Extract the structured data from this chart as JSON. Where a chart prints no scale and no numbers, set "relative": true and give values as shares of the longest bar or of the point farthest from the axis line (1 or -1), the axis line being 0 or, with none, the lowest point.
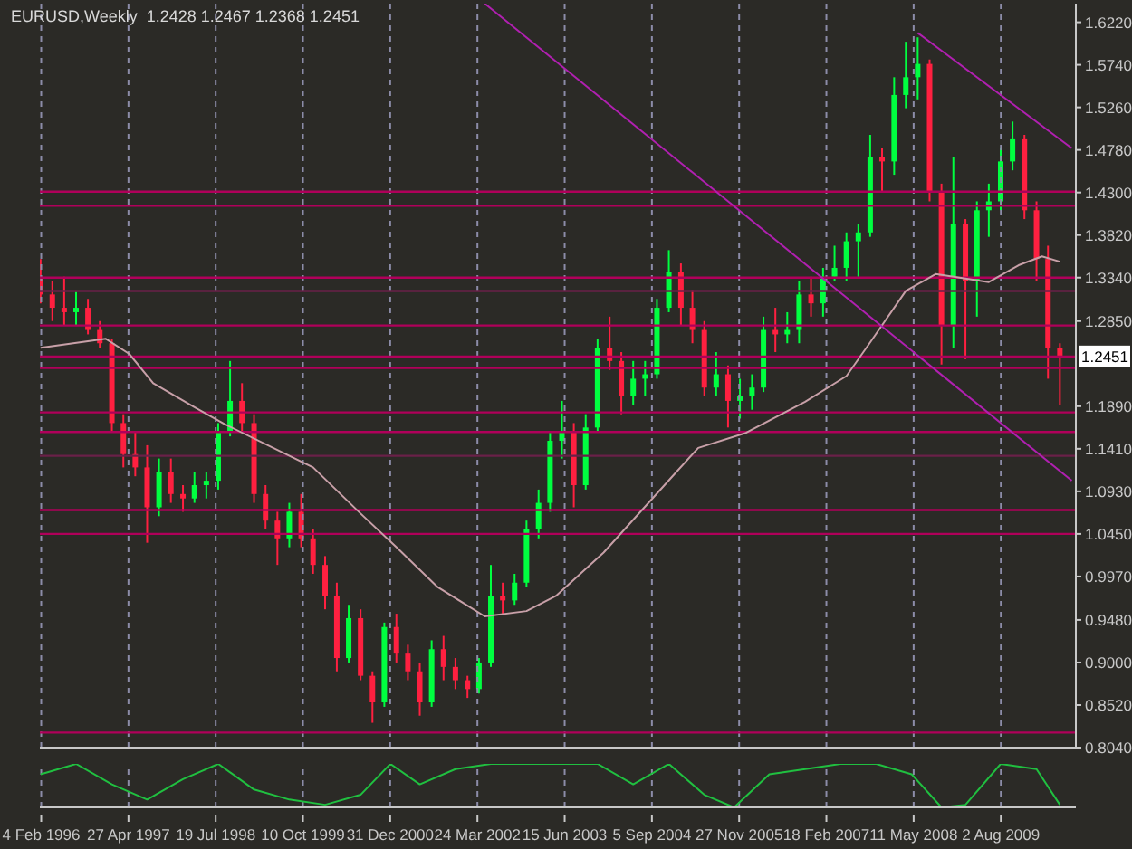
{
  "chart_data": [
    {
      "type": "candlestick",
      "title": "EURUSD,Weekly  1.2428 1.2467 1.2368 1.2451",
      "xlim": [
        "1996-01-28",
        "2010-08-22"
      ],
      "xticks": [
        {
          "value": "1996-02-04",
          "label": null
        },
        {
          "value": "1997-04-27",
          "label": null
        },
        {
          "value": "1998-07-19",
          "label": null
        },
        {
          "value": "1999-10-10",
          "label": null
        },
        {
          "value": "2000-12-31",
          "label": null
        },
        {
          "value": "2002-03-24",
          "label": null
        },
        {
          "value": "2003-06-15",
          "label": null
        },
        {
          "value": "2004-09-05",
          "label": null
        },
        {
          "value": "2005-11-27",
          "label": null
        },
        {
          "value": "2007-02-18",
          "label": null
        },
        {
          "value": "2008-05-11",
          "label": null
        },
        {
          "value": "2009-08-02",
          "label": null
        }
      ],
      "ylim": [
        0.804,
        1.643
      ],
      "yticks": [
        {
          "value": 0.804,
          "label": "0.8040"
        },
        {
          "value": 0.852,
          "label": "0.8520"
        },
        {
          "value": 0.9,
          "label": "0.9000"
        },
        {
          "value": 0.948,
          "label": "0.9480"
        },
        {
          "value": 0.997,
          "label": "0.9970"
        },
        {
          "value": 1.045,
          "label": "1.0450"
        },
        {
          "value": 1.093,
          "label": "1.0930"
        },
        {
          "value": 1.141,
          "label": "1.1410"
        },
        {
          "value": 1.189,
          "label": "1.1890"
        },
        {
          "value": 1.285,
          "label": "1.2850"
        },
        {
          "value": 1.334,
          "label": "1.3340"
        },
        {
          "value": 1.382,
          "label": "1.3820"
        },
        {
          "value": 1.43,
          "label": "1.4300"
        },
        {
          "value": 1.478,
          "label": "1.4780"
        },
        {
          "value": 1.526,
          "label": "1.5260"
        },
        {
          "value": 1.574,
          "label": "1.5740"
        },
        {
          "value": 1.622,
          "label": "1.6220"
        }
      ],
      "tick_labels": "y",
      "grid": "x",
      "legend": false,
      "series": [
        {
          "type": "candlestick",
          "x": [
            "1996-02",
            "1996-04",
            "1996-06",
            "1996-08",
            "1996-10",
            "1996-12",
            "1997-02",
            "1997-04",
            "1997-06",
            "1997-08",
            "1997-10",
            "1997-12",
            "1998-02",
            "1998-04",
            "1998-06",
            "1998-08",
            "1998-10",
            "1998-12",
            "1999-02",
            "1999-04",
            "1999-06",
            "1999-08",
            "1999-10",
            "1999-12",
            "2000-02",
            "2000-04",
            "2000-06",
            "2000-08",
            "2000-10",
            "2000-12",
            "2001-02",
            "2001-04",
            "2001-06",
            "2001-08",
            "2001-10",
            "2001-12",
            "2002-02",
            "2002-04",
            "2002-06",
            "2002-08",
            "2002-10",
            "2002-12",
            "2003-02",
            "2003-04",
            "2003-06",
            "2003-08",
            "2003-10",
            "2003-12",
            "2004-02",
            "2004-04",
            "2004-06",
            "2004-08",
            "2004-10",
            "2004-12",
            "2005-02",
            "2005-04",
            "2005-06",
            "2005-08",
            "2005-10",
            "2005-12",
            "2006-02",
            "2006-04",
            "2006-06",
            "2006-08",
            "2006-10",
            "2006-12",
            "2007-02",
            "2007-04",
            "2007-06",
            "2007-08",
            "2007-10",
            "2007-12",
            "2008-02",
            "2008-04",
            "2008-06",
            "2008-08",
            "2008-10",
            "2008-12",
            "2009-02",
            "2009-04",
            "2009-06",
            "2009-08",
            "2009-10",
            "2009-12",
            "2010-02",
            "2010-04",
            "2010-06"
          ],
          "ohlc": [
            [
              1.335,
              1.355,
              1.305,
              1.315
            ],
            [
              1.315,
              1.33,
              1.285,
              1.3
            ],
            [
              1.3,
              1.335,
              1.28,
              1.295
            ],
            [
              1.295,
              1.318,
              1.28,
              1.3
            ],
            [
              1.3,
              1.31,
              1.27,
              1.275
            ],
            [
              1.275,
              1.285,
              1.255,
              1.26
            ],
            [
              1.26,
              1.265,
              1.16,
              1.17
            ],
            [
              1.17,
              1.18,
              1.12,
              1.135
            ],
            [
              1.135,
              1.16,
              1.11,
              1.12
            ],
            [
              1.12,
              1.145,
              1.035,
              1.075
            ],
            [
              1.075,
              1.13,
              1.065,
              1.115
            ],
            [
              1.115,
              1.13,
              1.08,
              1.09
            ],
            [
              1.09,
              1.1,
              1.07,
              1.085
            ],
            [
              1.085,
              1.115,
              1.08,
              1.1
            ],
            [
              1.1,
              1.115,
              1.085,
              1.105
            ],
            [
              1.105,
              1.17,
              1.095,
              1.16
            ],
            [
              1.16,
              1.24,
              1.155,
              1.195
            ],
            [
              1.195,
              1.215,
              1.16,
              1.17
            ],
            [
              1.17,
              1.18,
              1.08,
              1.09
            ],
            [
              1.09,
              1.1,
              1.05,
              1.06
            ],
            [
              1.06,
              1.07,
              1.01,
              1.04
            ],
            [
              1.04,
              1.08,
              1.03,
              1.07
            ],
            [
              1.07,
              1.09,
              1.03,
              1.04
            ],
            [
              1.04,
              1.05,
              1.0,
              1.01
            ],
            [
              1.01,
              1.02,
              0.96,
              0.975
            ],
            [
              0.975,
              0.99,
              0.89,
              0.905
            ],
            [
              0.905,
              0.965,
              0.9,
              0.95
            ],
            [
              0.95,
              0.96,
              0.88,
              0.885
            ],
            [
              0.885,
              0.89,
              0.832,
              0.855
            ],
            [
              0.855,
              0.945,
              0.85,
              0.94
            ],
            [
              0.94,
              0.955,
              0.9,
              0.91
            ],
            [
              0.91,
              0.92,
              0.88,
              0.89
            ],
            [
              0.89,
              0.9,
              0.84,
              0.855
            ],
            [
              0.855,
              0.925,
              0.85,
              0.915
            ],
            [
              0.915,
              0.93,
              0.88,
              0.895
            ],
            [
              0.895,
              0.905,
              0.87,
              0.88
            ],
            [
              0.88,
              0.885,
              0.86,
              0.87
            ],
            [
              0.87,
              0.905,
              0.865,
              0.9
            ],
            [
              0.9,
              1.01,
              0.895,
              0.975
            ],
            [
              0.975,
              0.99,
              0.955,
              0.97
            ],
            [
              0.97,
              1.0,
              0.965,
              0.99
            ],
            [
              0.99,
              1.06,
              0.985,
              1.05
            ],
            [
              1.05,
              1.095,
              1.04,
              1.08
            ],
            [
              1.08,
              1.16,
              1.07,
              1.15
            ],
            [
              1.15,
              1.195,
              1.13,
              1.16
            ],
            [
              1.16,
              1.17,
              1.075,
              1.1
            ],
            [
              1.1,
              1.18,
              1.095,
              1.165
            ],
            [
              1.165,
              1.265,
              1.16,
              1.255
            ],
            [
              1.255,
              1.29,
              1.23,
              1.24
            ],
            [
              1.24,
              1.25,
              1.18,
              1.2
            ],
            [
              1.2,
              1.24,
              1.19,
              1.22
            ],
            [
              1.22,
              1.24,
              1.2,
              1.225
            ],
            [
              1.225,
              1.31,
              1.22,
              1.3
            ],
            [
              1.3,
              1.365,
              1.295,
              1.34
            ],
            [
              1.34,
              1.35,
              1.28,
              1.3
            ],
            [
              1.3,
              1.32,
              1.26,
              1.275
            ],
            [
              1.275,
              1.285,
              1.2,
              1.21
            ],
            [
              1.21,
              1.25,
              1.2,
              1.225
            ],
            [
              1.225,
              1.235,
              1.165,
              1.195
            ],
            [
              1.195,
              1.22,
              1.175,
              1.2
            ],
            [
              1.2,
              1.225,
              1.185,
              1.21
            ],
            [
              1.21,
              1.29,
              1.205,
              1.275
            ],
            [
              1.275,
              1.3,
              1.25,
              1.27
            ],
            [
              1.27,
              1.295,
              1.26,
              1.275
            ],
            [
              1.275,
              1.33,
              1.26,
              1.315
            ],
            [
              1.315,
              1.335,
              1.29,
              1.305
            ],
            [
              1.305,
              1.345,
              1.29,
              1.335
            ],
            [
              1.335,
              1.37,
              1.33,
              1.345
            ],
            [
              1.345,
              1.385,
              1.33,
              1.375
            ],
            [
              1.375,
              1.395,
              1.335,
              1.385
            ],
            [
              1.385,
              1.495,
              1.38,
              1.47
            ],
            [
              1.47,
              1.48,
              1.43,
              1.465
            ],
            [
              1.465,
              1.56,
              1.45,
              1.54
            ],
            [
              1.54,
              1.6,
              1.525,
              1.56
            ],
            [
              1.56,
              1.605,
              1.535,
              1.575
            ],
            [
              1.575,
              1.58,
              1.42,
              1.43
            ],
            [
              1.43,
              1.44,
              1.236,
              1.28
            ],
            [
              1.28,
              1.47,
              1.255,
              1.395
            ],
            [
              1.395,
              1.4,
              1.242,
              1.33
            ],
            [
              1.33,
              1.42,
              1.29,
              1.41
            ],
            [
              1.41,
              1.44,
              1.38,
              1.42
            ],
            [
              1.42,
              1.48,
              1.41,
              1.465
            ],
            [
              1.465,
              1.51,
              1.455,
              1.49
            ],
            [
              1.49,
              1.495,
              1.4,
              1.41
            ],
            [
              1.41,
              1.42,
              1.33,
              1.355
            ],
            [
              1.355,
              1.37,
              1.22,
              1.255
            ],
            [
              1.255,
              1.26,
              1.19,
              1.245
            ]
          ],
          "colors": [
            "#ff2040",
            "#ff2040",
            "#ff2040",
            "#00ff40",
            "#ff2040",
            "#ff2040",
            "#ff2040",
            "#ff2040",
            "#ff2040",
            "#ff2040",
            "#00ff40",
            "#ff2040",
            "#ff2040",
            "#00ff40",
            "#00ff40",
            "#00ff40",
            "#00ff40",
            "#ff2040",
            "#ff2040",
            "#ff2040",
            "#ff2040",
            "#00ff40",
            "#ff2040",
            "#ff2040",
            "#ff2040",
            "#ff2040",
            "#00ff40",
            "#ff2040",
            "#ff2040",
            "#00ff40",
            "#ff2040",
            "#ff2040",
            "#ff2040",
            "#00ff40",
            "#ff2040",
            "#ff2040",
            "#ff2040",
            "#00ff40",
            "#00ff40",
            "#ff2040",
            "#00ff40",
            "#00ff40",
            "#00ff40",
            "#00ff40",
            "#00ff40",
            "#ff2040",
            "#00ff40",
            "#00ff40",
            "#ff2040",
            "#ff2040",
            "#00ff40",
            "#00ff40",
            "#00ff40",
            "#00ff40",
            "#ff2040",
            "#ff2040",
            "#ff2040",
            "#00ff40",
            "#ff2040",
            "#00ff40",
            "#00ff40",
            "#00ff40",
            "#ff2040",
            "#00ff40",
            "#00ff40",
            "#ff2040",
            "#00ff40",
            "#00ff40",
            "#00ff40",
            "#00ff40",
            "#00ff40",
            "#ff2040",
            "#00ff40",
            "#00ff40",
            "#00ff40",
            "#ff2040",
            "#ff2040",
            "#00ff40",
            "#ff2040",
            "#00ff40",
            "#00ff40",
            "#00ff40",
            "#00ff40",
            "#ff2040",
            "#ff2040",
            "#ff2040",
            "#ff2040"
          ]
        },
        {
          "type": "line",
          "color": "#c8a0a8",
          "x": [
            "1996-02",
            "1997-01",
            "1997-05",
            "1997-09",
            "1998-04",
            "1998-09",
            "1999-12",
            "2000-08",
            "2001-02",
            "2001-09",
            "2002-05",
            "2002-12",
            "2003-05",
            "2004-01",
            "2005-01",
            "2005-05",
            "2006-01",
            "2006-11",
            "2007-06",
            "2007-10",
            "2008-04",
            "2008-09",
            "2009-02",
            "2009-06",
            "2009-11",
            "2010-03",
            "2010-06"
          ],
          "values": [
            1.255,
            1.265,
            1.248,
            1.215,
            1.188,
            1.169,
            1.12,
            1.068,
            1.03,
            0.985,
            0.952,
            0.958,
            0.975,
            1.024,
            1.113,
            1.142,
            1.159,
            1.194,
            1.223,
            1.261,
            1.319,
            1.338,
            1.333,
            1.329,
            1.348,
            1.358,
            1.352
          ]
        },
        {
          "type": "line",
          "color": "#b020b0",
          "x": [
            "2002-05",
            "2010-08"
          ],
          "values": [
            1.643,
            1.105
          ]
        },
        {
          "type": "line",
          "color": "#b020b0",
          "x": [
            "2008-06",
            "2010-08"
          ],
          "values": [
            1.61,
            1.48
          ]
        }
      ],
      "ref_lines": [
        {
          "axis": "y",
          "value": 1.431,
          "color": "#b0005a"
        },
        {
          "axis": "y",
          "value": 1.415,
          "color": "#b0005a"
        },
        {
          "axis": "y",
          "value": 1.334,
          "color": "#b0005a"
        },
        {
          "axis": "y",
          "value": 1.319,
          "color": "#6a2048"
        },
        {
          "axis": "y",
          "value": 1.28,
          "color": "#b0005a"
        },
        {
          "axis": "y",
          "value": 1.2451,
          "label": "1.2451",
          "color": "#b0005a"
        },
        {
          "axis": "y",
          "value": 1.232,
          "color": "#b0005a"
        },
        {
          "axis": "y",
          "value": 1.182,
          "color": "#b0005a"
        },
        {
          "axis": "y",
          "value": 1.16,
          "color": "#b0005a"
        },
        {
          "axis": "y",
          "value": 1.133,
          "color": "#6a2048"
        },
        {
          "axis": "y",
          "value": 1.072,
          "color": "#b0005a"
        },
        {
          "axis": "y",
          "value": 1.045,
          "color": "#b0005a"
        },
        {
          "axis": "y",
          "value": 0.821,
          "color": "#b0005a"
        }
      ]
    },
    {
      "type": "line",
      "relative": true,
      "tick_labels": "x",
      "grid": "x",
      "legend": false,
      "xlim": [
        "1996-01-28",
        "2010-08-22"
      ],
      "xticks": [
        {
          "value": "1996-02-04",
          "label": "4 Feb 1996"
        },
        {
          "value": "1997-04-27",
          "label": "27 Apr 1997"
        },
        {
          "value": "1998-07-19",
          "label": "19 Jul 1998"
        },
        {
          "value": "1999-10-10",
          "label": "10 Oct 1999"
        },
        {
          "value": "2000-12-31",
          "label": "31 Dec 2000"
        },
        {
          "value": "2002-03-24",
          "label": "24 Mar 2002"
        },
        {
          "value": "2003-06-15",
          "label": "15 Jun 2003"
        },
        {
          "value": "2004-09-05",
          "label": "5 Sep 2004"
        },
        {
          "value": "2005-11-27",
          "label": "27 Nov 2005"
        },
        {
          "value": "2007-02-18",
          "label": "18 Feb 2007"
        },
        {
          "value": "2008-05-11",
          "label": "11 May 2008"
        },
        {
          "value": "2009-08-02",
          "label": "2 Aug 2009"
        }
      ],
      "series": [
        {
          "color": "#20c040",
          "x": [
            "1996-02",
            "1996-08",
            "1997-02",
            "1997-08",
            "1998-02",
            "1998-08",
            "1999-02",
            "1999-08",
            "2000-02",
            "2000-08",
            "2001-01",
            "2001-06",
            "2001-12",
            "2002-06",
            "2002-12",
            "2003-06",
            "2003-12",
            "2004-06",
            "2004-12",
            "2005-06",
            "2005-11",
            "2006-05",
            "2006-11",
            "2007-05",
            "2007-11",
            "2008-05",
            "2008-10",
            "2009-02",
            "2009-08",
            "2010-02",
            "2010-06"
          ],
          "values": [
            0.76,
            1,
            0.53,
            0.18,
            0.65,
            1,
            0.41,
            0.18,
            0.06,
            0.29,
            1,
            0.53,
            0.88,
            1,
            1,
            1,
            1,
            0.53,
            1,
            0.29,
            0,
            0.76,
            0.88,
            1,
            1,
            0.76,
            0,
            0.06,
            1,
            0.88,
            0.06
          ]
        }
      ]
    }
  ]
}
